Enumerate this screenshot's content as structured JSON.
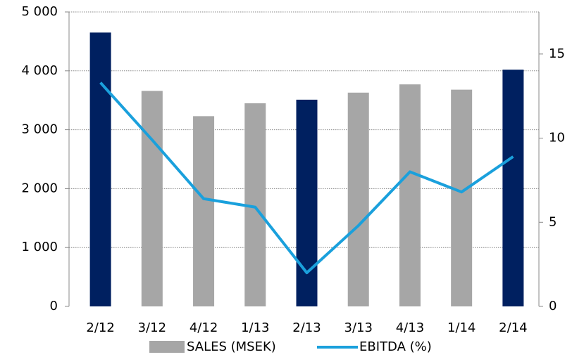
{
  "chart_data": {
    "type": "bar",
    "categories": [
      "2/12",
      "3/12",
      "4/12",
      "1/13",
      "2/13",
      "3/13",
      "4/13",
      "1/14",
      "2/14"
    ],
    "series": [
      {
        "name": "SALES (MSEK)",
        "type": "bar",
        "color": "#a6a6a6",
        "point_colors": [
          "#002060",
          "#a6a6a6",
          "#a6a6a6",
          "#a6a6a6",
          "#002060",
          "#a6a6a6",
          "#a6a6a6",
          "#a6a6a6",
          "#002060"
        ],
        "values": [
          4650,
          3660,
          3230,
          3450,
          3510,
          3630,
          3770,
          3680,
          4020
        ]
      },
      {
        "name": "EBITDA (%)",
        "type": "line",
        "color": "#1aa0dc",
        "axis": "y2",
        "values": [
          13.3,
          9.9,
          6.4,
          5.9,
          2.0,
          4.8,
          8.0,
          6.8,
          8.9
        ]
      }
    ],
    "ylim": [
      0,
      5000
    ],
    "yticks": [
      0,
      {
        "value": 1000,
        "label": "1 000"
      },
      {
        "value": 2000,
        "label": "2 000"
      },
      {
        "value": 3000,
        "label": "3 000"
      },
      {
        "value": 4000,
        "label": "4 000"
      },
      {
        "value": 5000,
        "label": "5 000"
      }
    ],
    "y2lim": [
      0,
      17.5
    ],
    "y2ticks": [
      0,
      5,
      10,
      15
    ],
    "grid": true,
    "legend": "bottom"
  }
}
